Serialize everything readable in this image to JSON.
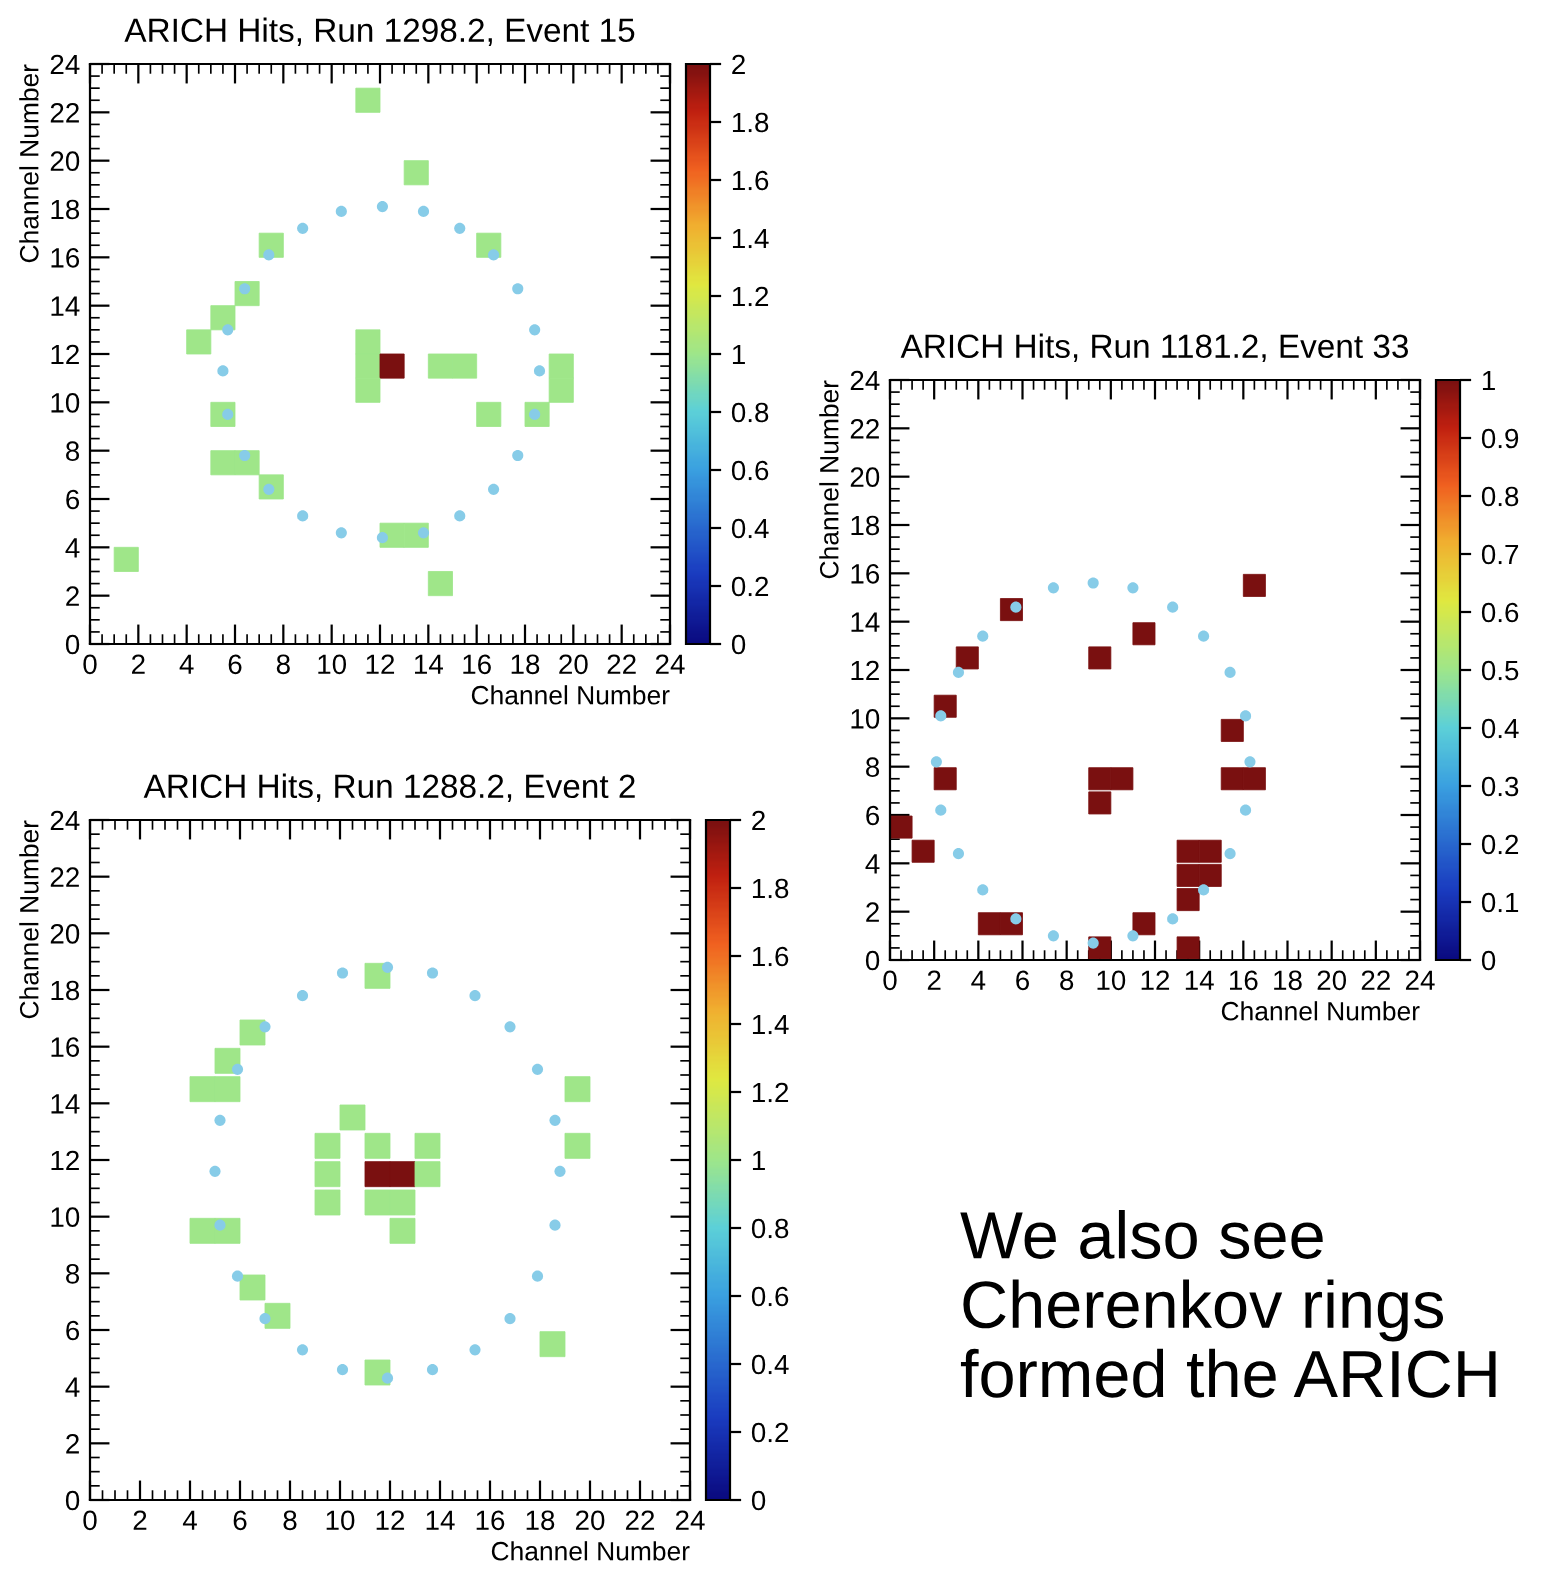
{
  "chart_data": [
    {
      "type": "scatter",
      "title": "ARICH Hits, Run 1298.2, Event 15",
      "xlabel": "Channel Number",
      "ylabel": "Channel Number",
      "xlim": [
        0,
        24
      ],
      "ylim": [
        0,
        24
      ],
      "xticks": [
        0,
        2,
        4,
        6,
        8,
        10,
        12,
        14,
        16,
        18,
        20,
        22,
        24
      ],
      "yticks": [
        0,
        2,
        4,
        6,
        8,
        10,
        12,
        14,
        16,
        18,
        20,
        22,
        24
      ],
      "clim": [
        0,
        2
      ],
      "cticks": [
        0,
        0.2,
        0.4,
        0.6,
        0.8,
        1,
        1.2,
        1.4,
        1.6,
        1.8,
        2
      ],
      "series": [
        {
          "type": "scatter",
          "marker": "square",
          "x": [
            11.5,
            13.5,
            7.5,
            16.5,
            6.5,
            5.5,
            4.5,
            11.5,
            11.5,
            12.5,
            14.5,
            15.5,
            19.5,
            11.5,
            19.5,
            5.5,
            16.5,
            18.5,
            5.5,
            6.5,
            7.5,
            12.5,
            13.5,
            1.5,
            14.5
          ],
          "values": [
            22.5,
            19.5,
            16.5,
            16.5,
            14.5,
            13.5,
            12.5,
            12.5,
            11.5,
            11.5,
            11.5,
            11.5,
            11.5,
            10.5,
            10.5,
            9.5,
            9.5,
            9.5,
            7.5,
            7.5,
            6.5,
            4.5,
            4.5,
            3.5,
            2.5
          ],
          "cvalues": [
            1,
            1,
            1,
            1,
            1,
            1,
            1,
            1,
            1,
            2,
            1,
            1,
            1,
            1,
            1,
            1,
            1,
            1,
            1,
            1,
            1,
            1,
            1,
            1,
            1
          ],
          "colors": [
            "#9ee68a",
            "#9ee68a",
            "#9ee68a",
            "#9ee68a",
            "#9ee68a",
            "#9ee68a",
            "#9ee68a",
            "#9ee68a",
            "#9ee68a",
            "#7a1010",
            "#9ee68a",
            "#9ee68a",
            "#9ee68a",
            "#9ee68a",
            "#9ee68a",
            "#9ee68a",
            "#9ee68a",
            "#9ee68a",
            "#9ee68a",
            "#9ee68a",
            "#9ee68a",
            "#9ee68a",
            "#9ee68a",
            "#9ee68a",
            "#9ee68a"
          ]
        },
        {
          "type": "scatter",
          "marker": "circle",
          "color": "#87cce8",
          "x": [
            18.6,
            18.4,
            17.7,
            16.7,
            15.3,
            13.8,
            12.1,
            10.4,
            8.8,
            7.4,
            6.4,
            5.7,
            5.5,
            5.7,
            6.4,
            7.4,
            8.8,
            10.4,
            12.1,
            13.8,
            15.3,
            16.7,
            17.7,
            18.4
          ],
          "values": [
            11.3,
            13.0,
            14.7,
            16.1,
            17.2,
            17.9,
            18.1,
            17.9,
            17.2,
            16.1,
            14.7,
            13.0,
            11.3,
            9.5,
            7.8,
            6.4,
            5.3,
            4.6,
            4.4,
            4.6,
            5.3,
            6.4,
            7.8,
            9.5
          ]
        }
      ]
    },
    {
      "type": "scatter",
      "title": "ARICH Hits, Run 1181.2, Event 33",
      "xlabel": "Channel Number",
      "ylabel": "Channel Number",
      "xlim": [
        0,
        24
      ],
      "ylim": [
        0,
        24
      ],
      "xticks": [
        0,
        2,
        4,
        6,
        8,
        10,
        12,
        14,
        16,
        18,
        20,
        22,
        24
      ],
      "yticks": [
        0,
        2,
        4,
        6,
        8,
        10,
        12,
        14,
        16,
        18,
        20,
        22,
        24
      ],
      "clim": [
        0,
        1
      ],
      "cticks": [
        0,
        0.1,
        0.2,
        0.3,
        0.4,
        0.5,
        0.6,
        0.7,
        0.8,
        0.9,
        1
      ],
      "series": [
        {
          "type": "scatter",
          "marker": "square",
          "color": "#7a1010",
          "x": [
            16.5,
            5.5,
            11.5,
            3.5,
            9.5,
            2.5,
            15.5,
            2.5,
            9.5,
            10.5,
            15.5,
            16.5,
            9.5,
            0.5,
            1.5,
            13.5,
            14.5,
            13.5,
            14.5,
            13.5,
            4.5,
            5.5,
            11.5,
            9.5,
            13.5
          ],
          "values": [
            15.5,
            14.5,
            13.5,
            12.5,
            12.5,
            10.5,
            9.5,
            7.5,
            7.5,
            7.5,
            7.5,
            7.5,
            6.5,
            5.5,
            4.5,
            4.5,
            4.5,
            3.5,
            3.5,
            2.5,
            1.5,
            1.5,
            1.5,
            0.5,
            0.5
          ],
          "cvalues": [
            1,
            1,
            1,
            1,
            1,
            1,
            1,
            1,
            1,
            1,
            1,
            1,
            1,
            1,
            1,
            1,
            1,
            1,
            1,
            1,
            1,
            1,
            1,
            1,
            1
          ]
        },
        {
          "type": "scatter",
          "marker": "circle",
          "color": "#87cce8",
          "x": [
            16.3,
            16.1,
            15.4,
            14.2,
            12.8,
            11.0,
            9.2,
            7.4,
            5.7,
            4.2,
            3.1,
            2.3,
            2.1,
            2.3,
            3.1,
            4.2,
            5.7,
            7.4,
            9.2,
            11.0,
            12.8,
            14.2,
            15.4,
            16.1
          ],
          "values": [
            8.2,
            10.1,
            11.9,
            13.4,
            14.6,
            15.4,
            15.6,
            15.4,
            14.6,
            13.4,
            11.9,
            10.1,
            8.2,
            6.2,
            4.4,
            2.9,
            1.7,
            1.0,
            0.7,
            1.0,
            1.7,
            2.9,
            4.4,
            6.2
          ]
        }
      ]
    },
    {
      "type": "scatter",
      "title": "ARICH Hits, Run 1288.2, Event 2",
      "xlabel": "Channel Number",
      "ylabel": "Channel Number",
      "xlim": [
        0,
        24
      ],
      "ylim": [
        0,
        24
      ],
      "xticks": [
        0,
        2,
        4,
        6,
        8,
        10,
        12,
        14,
        16,
        18,
        20,
        22,
        24
      ],
      "yticks": [
        0,
        2,
        4,
        6,
        8,
        10,
        12,
        14,
        16,
        18,
        20,
        22,
        24
      ],
      "clim": [
        0,
        2
      ],
      "cticks": [
        0,
        0.2,
        0.4,
        0.6,
        0.8,
        1,
        1.2,
        1.4,
        1.6,
        1.8,
        2
      ],
      "series": [
        {
          "type": "scatter",
          "marker": "square",
          "x": [
            11.5,
            6.5,
            5.5,
            4.5,
            5.5,
            19.5,
            10.5,
            9.5,
            11.5,
            13.5,
            19.5,
            9.5,
            11.5,
            12.5,
            13.5,
            9.5,
            11.5,
            12.5,
            4.5,
            5.5,
            12.5,
            6.5,
            7.5,
            18.5,
            11.5
          ],
          "values": [
            18.5,
            16.5,
            15.5,
            14.5,
            14.5,
            14.5,
            13.5,
            12.5,
            12.5,
            12.5,
            12.5,
            11.5,
            11.5,
            11.5,
            11.5,
            10.5,
            10.5,
            10.5,
            9.5,
            9.5,
            9.5,
            7.5,
            6.5,
            5.5,
            4.5
          ],
          "cvalues": [
            1,
            1,
            1,
            1,
            1,
            1,
            1,
            1,
            1,
            1,
            1,
            1,
            2,
            2,
            1,
            1,
            1,
            1,
            1,
            1,
            1,
            1,
            1,
            1,
            1
          ],
          "colors": [
            "#9ee68a",
            "#9ee68a",
            "#9ee68a",
            "#9ee68a",
            "#9ee68a",
            "#9ee68a",
            "#9ee68a",
            "#9ee68a",
            "#9ee68a",
            "#9ee68a",
            "#9ee68a",
            "#9ee68a",
            "#7a1010",
            "#7a1010",
            "#9ee68a",
            "#9ee68a",
            "#9ee68a",
            "#9ee68a",
            "#9ee68a",
            "#9ee68a",
            "#9ee68a",
            "#9ee68a",
            "#9ee68a",
            "#9ee68a",
            "#9ee68a"
          ]
        },
        {
          "type": "scatter",
          "marker": "circle",
          "color": "#87cce8",
          "x": [
            18.8,
            18.6,
            17.9,
            16.8,
            15.4,
            13.7,
            11.9,
            10.1,
            8.5,
            7.0,
            5.9,
            5.2,
            5.0,
            5.2,
            5.9,
            7.0,
            8.5,
            10.1,
            11.9,
            13.7,
            15.4,
            16.8,
            17.9,
            18.6
          ],
          "values": [
            11.6,
            13.4,
            15.2,
            16.7,
            17.8,
            18.6,
            18.8,
            18.6,
            17.8,
            16.7,
            15.2,
            13.4,
            11.6,
            9.7,
            7.9,
            6.4,
            5.3,
            4.6,
            4.3,
            4.6,
            5.3,
            6.4,
            7.9,
            9.7
          ]
        }
      ],
      "annotations": [
        "We also see\nCherenkov rings\nformed the ARICH"
      ]
    }
  ]
}
